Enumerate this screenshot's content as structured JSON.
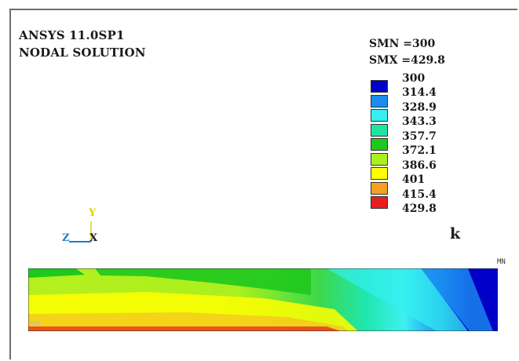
{
  "header": {
    "title": "ANSYS 11.0SP1",
    "subtitle": "NODAL SOLUTION"
  },
  "stats": {
    "smn": "SMN =300",
    "smx": "SMX =429.8"
  },
  "legend": {
    "top_label": "300",
    "unit": "k",
    "items": [
      {
        "label": "314.4",
        "color": "#0000c8"
      },
      {
        "label": "328.9",
        "color": "#1a8cf0"
      },
      {
        "label": "343.3",
        "color": "#33f0f0"
      },
      {
        "label": "357.7",
        "color": "#1ee6a0"
      },
      {
        "label": "372.1",
        "color": "#1ec81e"
      },
      {
        "label": "386.6",
        "color": "#aaf01e"
      },
      {
        "label": "401",
        "color": "#ffff00"
      },
      {
        "label": "415.4",
        "color": "#f5a01e"
      },
      {
        "label": "429.8",
        "color": "#e61e1e"
      }
    ]
  },
  "triad": {
    "y": "Y",
    "z": "Z",
    "x": "X"
  },
  "markers": {
    "mn": "MN",
    "smn": "SMX"
  }
}
